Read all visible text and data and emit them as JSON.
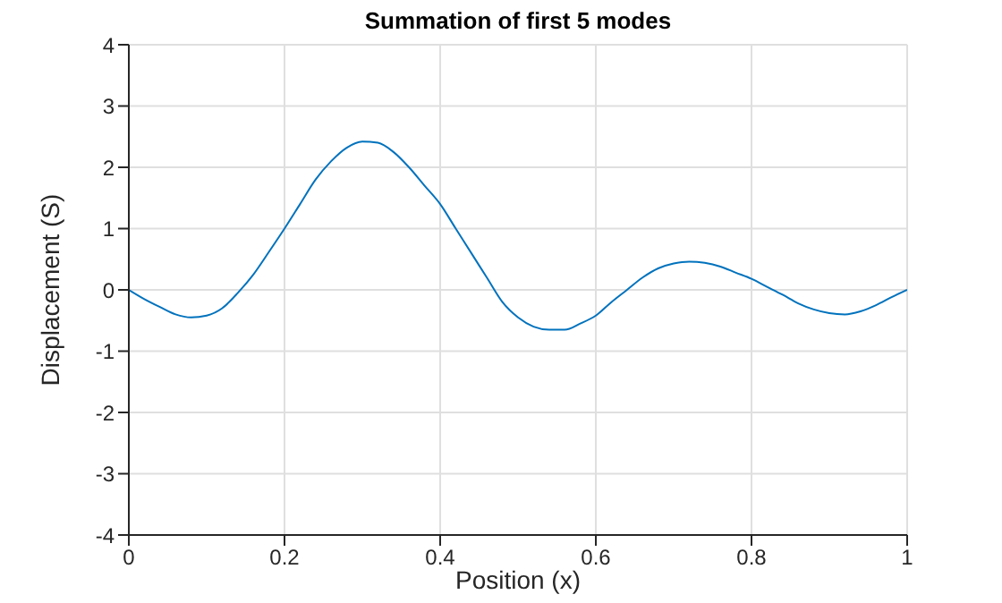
{
  "chart_data": {
    "type": "line",
    "title": "Summation of first 5 modes",
    "xlabel": "Position (x)",
    "ylabel": "Displacement (S)",
    "x": [
      0,
      0.02,
      0.04,
      0.06,
      0.08,
      0.1,
      0.12,
      0.14,
      0.16,
      0.18,
      0.2,
      0.22,
      0.24,
      0.26,
      0.28,
      0.3,
      0.32,
      0.34,
      0.36,
      0.38,
      0.4,
      0.42,
      0.44,
      0.46,
      0.48,
      0.5,
      0.52,
      0.54,
      0.56,
      0.58,
      0.6,
      0.62,
      0.64,
      0.66,
      0.68,
      0.7,
      0.72,
      0.74,
      0.76,
      0.78,
      0.8,
      0.82,
      0.84,
      0.86,
      0.88,
      0.9,
      0.92,
      0.94,
      0.96,
      0.98,
      1
    ],
    "series": [
      {
        "color": "#0072bd",
        "values": [
          0,
          -0.15,
          -0.28,
          -0.4,
          -0.45,
          -0.42,
          -0.3,
          -0.05,
          0.25,
          0.62,
          1.0,
          1.4,
          1.8,
          2.1,
          2.32,
          2.42,
          2.4,
          2.25,
          2.0,
          1.7,
          1.4,
          1.0,
          0.6,
          0.2,
          -0.2,
          -0.45,
          -0.6,
          -0.65,
          -0.65,
          -0.55,
          -0.42,
          -0.2,
          0.0,
          0.2,
          0.35,
          0.43,
          0.46,
          0.44,
          0.38,
          0.28,
          0.18,
          0.05,
          -0.08,
          -0.22,
          -0.32,
          -0.38,
          -0.4,
          -0.35,
          -0.25,
          -0.12,
          0
        ]
      }
    ],
    "xlim": [
      0,
      1
    ],
    "xticks": [
      0,
      0.2,
      0.4,
      0.6,
      0.8,
      1
    ],
    "ylim": [
      -4,
      4
    ],
    "yticks": [
      -4,
      -3,
      -2,
      -1,
      0,
      1,
      2,
      3,
      4
    ],
    "grid": true,
    "legend": false,
    "marker": "none",
    "line_style": "solid"
  }
}
